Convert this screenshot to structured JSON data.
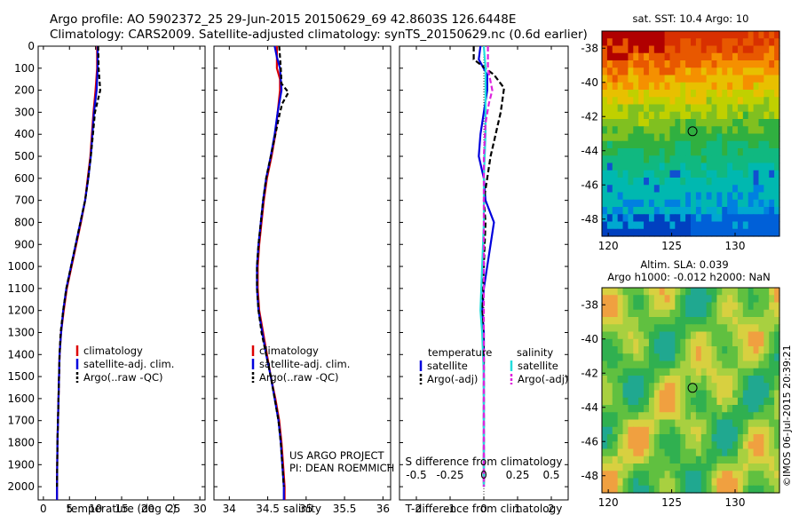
{
  "header": {
    "title_line1": "Argo profile: AO 5902372_25 29-Jun-2015 20150629_69 42.8603S 126.6448E",
    "title_line2": "Climatology: CARS2009. Satellite-adjusted climatology: synTS_20150629.nc (0.6d earlier)"
  },
  "side_stamp": "©IMOS 06-Jul-2015 20:39:21",
  "colors": {
    "climatology": "#dd0000",
    "satellite": "#0000dd",
    "argo": "#000000",
    "salinity_satellite": "#22dddd",
    "salinity_argo": "#dd22dd"
  },
  "chart_data": [
    {
      "type": "line",
      "id": "temperature",
      "xlabel": "temperature (deg C)",
      "ylabel": "",
      "xlim": [
        -1,
        31
      ],
      "ylim": [
        2060,
        0
      ],
      "xticks": [
        0,
        5,
        10,
        15,
        20,
        25,
        30
      ],
      "yticks": [
        0,
        100,
        200,
        300,
        400,
        500,
        600,
        700,
        800,
        900,
        1000,
        1100,
        1200,
        1300,
        1400,
        1500,
        1600,
        1700,
        1800,
        1900,
        2000
      ],
      "legend": {
        "position": "lower-center",
        "entries": [
          "climatology",
          "satellite-adj. clim.",
          "Argo(..raw -QC)"
        ]
      },
      "series": [
        {
          "name": "climatology",
          "color": "#dd0000",
          "dash": "",
          "points": [
            [
              10.3,
              0
            ],
            [
              10.3,
              100
            ],
            [
              10.0,
              200
            ],
            [
              9.6,
              300
            ],
            [
              9.3,
              400
            ],
            [
              9.0,
              500
            ],
            [
              8.5,
              600
            ],
            [
              8.0,
              700
            ],
            [
              7.2,
              800
            ],
            [
              6.3,
              900
            ],
            [
              5.4,
              1000
            ],
            [
              4.5,
              1100
            ],
            [
              3.9,
              1200
            ],
            [
              3.4,
              1300
            ],
            [
              3.1,
              1400
            ],
            [
              2.9,
              1600
            ],
            [
              2.7,
              1800
            ],
            [
              2.6,
              2000
            ],
            [
              2.6,
              2060
            ]
          ]
        },
        {
          "name": "satellite-adj. clim.",
          "color": "#0000dd",
          "dash": "",
          "points": [
            [
              10.4,
              0
            ],
            [
              10.4,
              100
            ],
            [
              10.2,
              200
            ],
            [
              9.7,
              300
            ],
            [
              9.4,
              400
            ],
            [
              9.1,
              500
            ],
            [
              8.6,
              600
            ],
            [
              8.0,
              700
            ],
            [
              7.1,
              800
            ],
            [
              6.2,
              900
            ],
            [
              5.3,
              1000
            ],
            [
              4.4,
              1100
            ],
            [
              3.8,
              1200
            ],
            [
              3.4,
              1300
            ],
            [
              3.1,
              1400
            ],
            [
              2.9,
              1600
            ],
            [
              2.7,
              1800
            ],
            [
              2.6,
              2000
            ],
            [
              2.6,
              2060
            ]
          ]
        },
        {
          "name": "Argo(..raw -QC)",
          "color": "#000000",
          "dash": "5,3",
          "points": [
            [
              10.5,
              0
            ],
            [
              10.6,
              100
            ],
            [
              10.9,
              200
            ],
            [
              9.9,
              300
            ],
            [
              9.5,
              400
            ],
            [
              9.1,
              500
            ],
            [
              8.6,
              600
            ],
            [
              8.0,
              700
            ],
            [
              7.1,
              800
            ],
            [
              6.2,
              900
            ],
            [
              5.3,
              1000
            ],
            [
              4.4,
              1100
            ],
            [
              3.8,
              1200
            ],
            [
              3.3,
              1300
            ],
            [
              3.1,
              1400
            ],
            [
              2.9,
              1600
            ],
            [
              2.7,
              1800
            ],
            [
              2.6,
              2000
            ]
          ]
        }
      ]
    },
    {
      "type": "line",
      "id": "salinity",
      "xlabel": "salinity",
      "ylabel": "",
      "xlim": [
        33.8,
        36.1
      ],
      "ylim": [
        2060,
        0
      ],
      "xticks": [
        34,
        34.5,
        35,
        35.5,
        36
      ],
      "xticklabels": [
        "34",
        "34.5",
        "35",
        "35.5",
        "36"
      ],
      "legend": {
        "position": "lower-center",
        "entries": [
          "climatology",
          "satellite-adj. clim.",
          "Argo(..raw -QC)"
        ]
      },
      "annotation": [
        "US ARGO PROJECT",
        "PI: DEAN ROEMMICH"
      ],
      "series": [
        {
          "name": "climatology",
          "color": "#dd0000",
          "dash": "",
          "points": [
            [
              34.62,
              0
            ],
            [
              34.62,
              100
            ],
            [
              34.66,
              150
            ],
            [
              34.66,
              200
            ],
            [
              34.63,
              300
            ],
            [
              34.6,
              400
            ],
            [
              34.55,
              500
            ],
            [
              34.49,
              600
            ],
            [
              34.45,
              700
            ],
            [
              34.42,
              800
            ],
            [
              34.39,
              900
            ],
            [
              34.37,
              1000
            ],
            [
              34.37,
              1100
            ],
            [
              34.39,
              1200
            ],
            [
              34.44,
              1300
            ],
            [
              34.49,
              1400
            ],
            [
              34.54,
              1500
            ],
            [
              34.6,
              1600
            ],
            [
              34.65,
              1700
            ],
            [
              34.68,
              1800
            ],
            [
              34.7,
              1900
            ],
            [
              34.72,
              2000
            ],
            [
              34.72,
              2060
            ]
          ]
        },
        {
          "name": "satellite-adj. clim.",
          "color": "#0000dd",
          "dash": "",
          "points": [
            [
              34.59,
              0
            ],
            [
              34.62,
              50
            ],
            [
              34.66,
              100
            ],
            [
              34.68,
              200
            ],
            [
              34.63,
              300
            ],
            [
              34.59,
              400
            ],
            [
              34.54,
              500
            ],
            [
              34.48,
              600
            ],
            [
              34.44,
              700
            ],
            [
              34.41,
              800
            ],
            [
              34.38,
              900
            ],
            [
              34.36,
              1000
            ],
            [
              34.36,
              1100
            ],
            [
              34.38,
              1200
            ],
            [
              34.43,
              1300
            ],
            [
              34.48,
              1400
            ],
            [
              34.54,
              1500
            ],
            [
              34.59,
              1600
            ],
            [
              34.64,
              1700
            ],
            [
              34.67,
              1800
            ],
            [
              34.69,
              1900
            ],
            [
              34.71,
              2000
            ],
            [
              34.71,
              2060
            ]
          ]
        },
        {
          "name": "Argo(..raw -QC)",
          "color": "#000000",
          "dash": "5,3",
          "points": [
            [
              34.65,
              0
            ],
            [
              34.67,
              100
            ],
            [
              34.68,
              170
            ],
            [
              34.77,
              210
            ],
            [
              34.69,
              260
            ],
            [
              34.66,
              300
            ],
            [
              34.6,
              400
            ],
            [
              34.54,
              500
            ],
            [
              34.48,
              600
            ],
            [
              34.44,
              700
            ],
            [
              34.41,
              800
            ],
            [
              34.38,
              900
            ],
            [
              34.36,
              1000
            ],
            [
              34.36,
              1100
            ],
            [
              34.38,
              1200
            ],
            [
              34.42,
              1300
            ],
            [
              34.48,
              1400
            ],
            [
              34.54,
              1500
            ],
            [
              34.59,
              1600
            ],
            [
              34.64,
              1700
            ],
            [
              34.67,
              1800
            ],
            [
              34.69,
              1900
            ],
            [
              34.71,
              2000
            ]
          ]
        }
      ]
    },
    {
      "type": "line",
      "id": "difference",
      "xlabel": "T difference from climatology",
      "xlabel2": "S difference from climatology",
      "xlim": [
        -2.5,
        2.5
      ],
      "ylim": [
        2060,
        0
      ],
      "xticks": [
        -2,
        -1,
        0,
        1,
        2
      ],
      "xticklabels": [
        "-2",
        "-1",
        "0",
        "1",
        "2"
      ],
      "top_ticks": [
        -0.5,
        -0.25,
        0,
        0.25,
        0.5
      ],
      "top_ticklabels": [
        "-0.5",
        "-0.25",
        "0",
        "0.25",
        "0.5"
      ],
      "legend": {
        "position": "lower-center",
        "temperature_header": "temperature",
        "salinity_header": "salinity",
        "entries": [
          "satellite",
          "Argo(-adj)",
          "satellite",
          "Argo(-adj)"
        ]
      },
      "series": [
        {
          "name": "satellite",
          "group": "temperature",
          "color": "#0000dd",
          "dash": "",
          "points": [
            [
              -0.1,
              0
            ],
            [
              -0.15,
              60
            ],
            [
              0.1,
              130
            ],
            [
              0.1,
              200
            ],
            [
              0.0,
              300
            ],
            [
              -0.1,
              400
            ],
            [
              -0.15,
              500
            ],
            [
              0.0,
              600
            ],
            [
              0.05,
              700
            ],
            [
              0.3,
              800
            ],
            [
              0.2,
              900
            ],
            [
              0.1,
              1000
            ],
            [
              0.0,
              1100
            ],
            [
              -0.05,
              1200
            ],
            [
              0.0,
              1300
            ],
            [
              0.0,
              1500
            ],
            [
              0.0,
              1800
            ],
            [
              0.0,
              2000
            ]
          ]
        },
        {
          "name": "Argo(-adj)",
          "group": "temperature",
          "color": "#000000",
          "dash": "6,3",
          "points": [
            [
              -0.3,
              0
            ],
            [
              -0.3,
              60
            ],
            [
              0.3,
              130
            ],
            [
              0.6,
              190
            ],
            [
              0.5,
              300
            ],
            [
              0.2,
              500
            ],
            [
              0.1,
              600
            ],
            [
              0.0,
              700
            ],
            [
              0.05,
              800
            ],
            [
              0.0,
              1000
            ],
            [
              -0.05,
              1200
            ],
            [
              0.0,
              1400
            ],
            [
              0.0,
              2000
            ]
          ]
        },
        {
          "name": "satellite",
          "group": "salinity",
          "color": "#22dddd",
          "dash": "",
          "points": [
            [
              0.0,
              0
            ],
            [
              0.05,
              100
            ],
            [
              0.05,
              200
            ],
            [
              0.05,
              400
            ],
            [
              0.0,
              600
            ],
            [
              0.0,
              800
            ],
            [
              -0.05,
              1000
            ],
            [
              -0.1,
              1200
            ],
            [
              -0.05,
              1300
            ],
            [
              0.0,
              1500
            ],
            [
              0.0,
              1800
            ],
            [
              0.0,
              2000
            ]
          ]
        },
        {
          "name": "Argo(-adj)",
          "group": "salinity",
          "color": "#dd22dd",
          "dash": "6,3",
          "points": [
            [
              0.12,
              0
            ],
            [
              0.12,
              100
            ],
            [
              0.25,
              200
            ],
            [
              0.15,
              260
            ],
            [
              0.05,
              350
            ],
            [
              0.0,
              500
            ],
            [
              0.0,
              800
            ],
            [
              0.0,
              1200
            ],
            [
              0.0,
              1500
            ],
            [
              0.0,
              2000
            ]
          ]
        }
      ]
    },
    {
      "type": "heatmap",
      "id": "sst-map",
      "title": "sat. SST: 10.4  Argo: 10",
      "xlim": [
        119.5,
        133.5
      ],
      "ylim": [
        -49,
        -37
      ],
      "xticks": [
        120,
        125,
        130
      ],
      "yticks": [
        -38,
        -40,
        -42,
        -44,
        -46,
        -48
      ],
      "marker": [
        126.6448,
        -42.8603
      ]
    },
    {
      "type": "heatmap",
      "id": "sla-map",
      "title_line1": "Altim. SLA: 0.039",
      "title_line2": "Argo h1000: -0.012 h2000: NaN",
      "xlim": [
        119.5,
        133.5
      ],
      "ylim": [
        -49,
        -37
      ],
      "xticks": [
        120,
        125,
        130
      ],
      "yticks": [
        -38,
        -40,
        -42,
        -44,
        -46,
        -48
      ],
      "marker": [
        126.6448,
        -42.8603
      ]
    }
  ]
}
